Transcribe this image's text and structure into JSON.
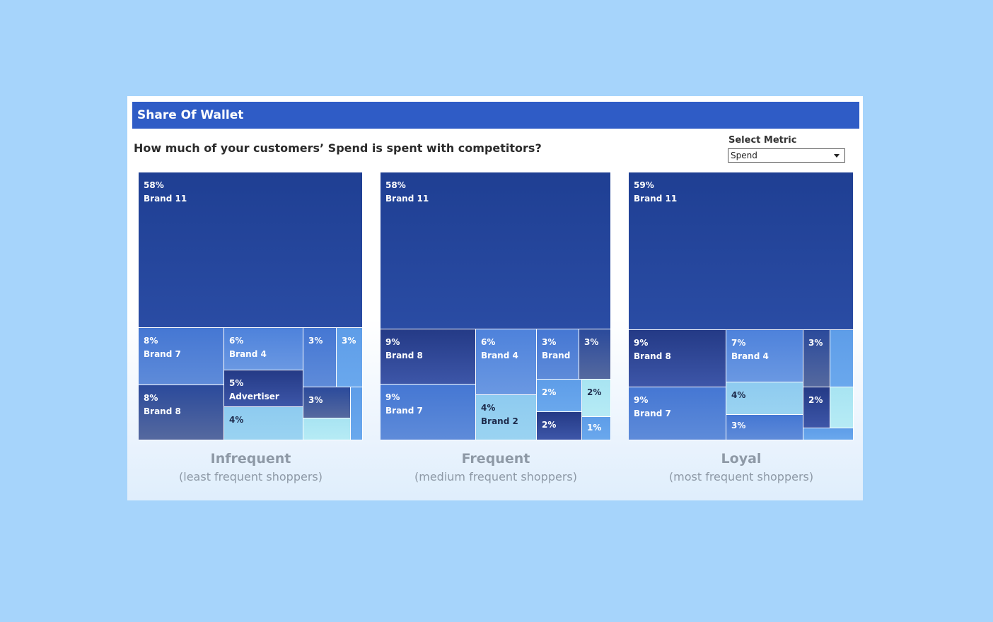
{
  "header": {
    "title": "Share Of Wallet"
  },
  "question": "How much of your customers’ Spend is spent with competitors?",
  "metric": {
    "label": "Select Metric",
    "selected": "Spend"
  },
  "colors": {
    "background": "#a6d4fb",
    "title_bar": "#2f5cc6",
    "segment_text": "#8e99a6",
    "shades": {
      "deep": [
        "#1f3f93",
        "#2a4ca4"
      ],
      "navy": [
        "#243a86",
        "#3d56a8"
      ],
      "dark": [
        "#2b4a9b",
        "#55699f"
      ],
      "mid": [
        "#4577d3",
        "#5e8bd9"
      ],
      "medium": [
        "#4e82db",
        "#6a98e2"
      ],
      "bright": [
        "#5e9de8",
        "#6aa8ed"
      ],
      "light": [
        "#8ecbf0",
        "#9ad3f1"
      ],
      "pale": [
        "#a8e4f2",
        "#b6ebf5"
      ]
    }
  },
  "chart_data": [
    {
      "type": "treemap",
      "title": "Infrequent",
      "subtitle": "(least frequent shoppers)",
      "tiles": [
        {
          "id": "brand-11",
          "pct": "58%",
          "name": "Brand 11",
          "value": 58,
          "shade": "deep",
          "text": "light"
        },
        {
          "id": "brand-7",
          "pct": "8%",
          "name": "Brand 7",
          "value": 8,
          "shade": "mid",
          "text": "light"
        },
        {
          "id": "brand-8",
          "pct": "8%",
          "name": "Brand 8",
          "value": 8,
          "shade": "dark",
          "text": "light"
        },
        {
          "id": "brand-4",
          "pct": "6%",
          "name": "Brand 4",
          "value": 6,
          "shade": "medium",
          "text": "light"
        },
        {
          "id": "advertiser",
          "pct": "5%",
          "name": "Advertiser",
          "value": 5,
          "shade": "navy",
          "text": "light"
        },
        {
          "id": "tile-4pct",
          "pct": "4%",
          "name": "",
          "value": 4,
          "shade": "light",
          "text": "dark"
        },
        {
          "id": "tile-3pct-a",
          "pct": "3%",
          "name": "",
          "value": 3,
          "shade": "mid",
          "text": "light"
        },
        {
          "id": "tile-3pct-b",
          "pct": "3%",
          "name": "",
          "value": 3,
          "shade": "bright",
          "text": "light"
        },
        {
          "id": "tile-3pct-c",
          "pct": "3%",
          "name": "",
          "value": 3,
          "shade": "dark",
          "text": "light"
        },
        {
          "id": "tile-unlabeled-a",
          "pct": "",
          "name": "",
          "value": null,
          "shade": "pale",
          "text": "light"
        },
        {
          "id": "tile-unlabeled-b",
          "pct": "",
          "name": "",
          "value": null,
          "shade": "bright",
          "text": "light"
        }
      ]
    },
    {
      "type": "treemap",
      "title": "Frequent",
      "subtitle": "(medium frequent shoppers)",
      "tiles": [
        {
          "id": "brand-11",
          "pct": "58%",
          "name": "Brand 11",
          "value": 58,
          "shade": "deep",
          "text": "light"
        },
        {
          "id": "brand-8",
          "pct": "9%",
          "name": "Brand 8",
          "value": 9,
          "shade": "navy",
          "text": "light"
        },
        {
          "id": "brand-7",
          "pct": "9%",
          "name": "Brand 7",
          "value": 9,
          "shade": "mid",
          "text": "light"
        },
        {
          "id": "brand-4",
          "pct": "6%",
          "name": "Brand 4",
          "value": 6,
          "shade": "medium",
          "text": "light"
        },
        {
          "id": "brand-2",
          "pct": "4%",
          "name": "Brand 2",
          "value": 4,
          "shade": "light",
          "text": "dark"
        },
        {
          "id": "brand-trunc",
          "pct": "3%",
          "name": "Brand",
          "value": 3,
          "shade": "mid",
          "text": "light"
        },
        {
          "id": "tile-3pct",
          "pct": "3%",
          "name": "",
          "value": 3,
          "shade": "dark",
          "text": "light"
        },
        {
          "id": "tile-2pct-a",
          "pct": "2%",
          "name": "",
          "value": 2,
          "shade": "bright",
          "text": "light"
        },
        {
          "id": "tile-2pct-b",
          "pct": "2%",
          "name": "",
          "value": 2,
          "shade": "pale",
          "text": "dark"
        },
        {
          "id": "tile-2pct-c",
          "pct": "2%",
          "name": "",
          "value": 2,
          "shade": "navy",
          "text": "light"
        },
        {
          "id": "tile-1pct",
          "pct": "1%",
          "name": "",
          "value": 1,
          "shade": "bright",
          "text": "light"
        }
      ]
    },
    {
      "type": "treemap",
      "title": "Loyal",
      "subtitle": "(most frequent shoppers)",
      "tiles": [
        {
          "id": "brand-11",
          "pct": "59%",
          "name": "Brand 11",
          "value": 59,
          "shade": "deep",
          "text": "light"
        },
        {
          "id": "brand-8",
          "pct": "9%",
          "name": "Brand 8",
          "value": 9,
          "shade": "navy",
          "text": "light"
        },
        {
          "id": "brand-7",
          "pct": "9%",
          "name": "Brand 7",
          "value": 9,
          "shade": "mid",
          "text": "light"
        },
        {
          "id": "brand-4",
          "pct": "7%",
          "name": "Brand 4",
          "value": 7,
          "shade": "medium",
          "text": "light"
        },
        {
          "id": "tile-4pct",
          "pct": "4%",
          "name": "",
          "value": 4,
          "shade": "light",
          "text": "dark"
        },
        {
          "id": "tile-3pct-a",
          "pct": "3%",
          "name": "",
          "value": 3,
          "shade": "mid",
          "text": "light"
        },
        {
          "id": "tile-3pct-b",
          "pct": "3%",
          "name": "",
          "value": 3,
          "shade": "dark",
          "text": "light"
        },
        {
          "id": "tile-2pct",
          "pct": "2%",
          "name": "",
          "value": 2,
          "shade": "navy",
          "text": "light"
        },
        {
          "id": "tile-unlabeled-a",
          "pct": "",
          "name": "",
          "value": null,
          "shade": "bright",
          "text": "light"
        },
        {
          "id": "tile-unlabeled-b",
          "pct": "",
          "name": "",
          "value": null,
          "shade": "pale",
          "text": "light"
        },
        {
          "id": "tile-unlabeled-c",
          "pct": "",
          "name": "",
          "value": null,
          "shade": "bright",
          "text": "light"
        }
      ]
    }
  ]
}
